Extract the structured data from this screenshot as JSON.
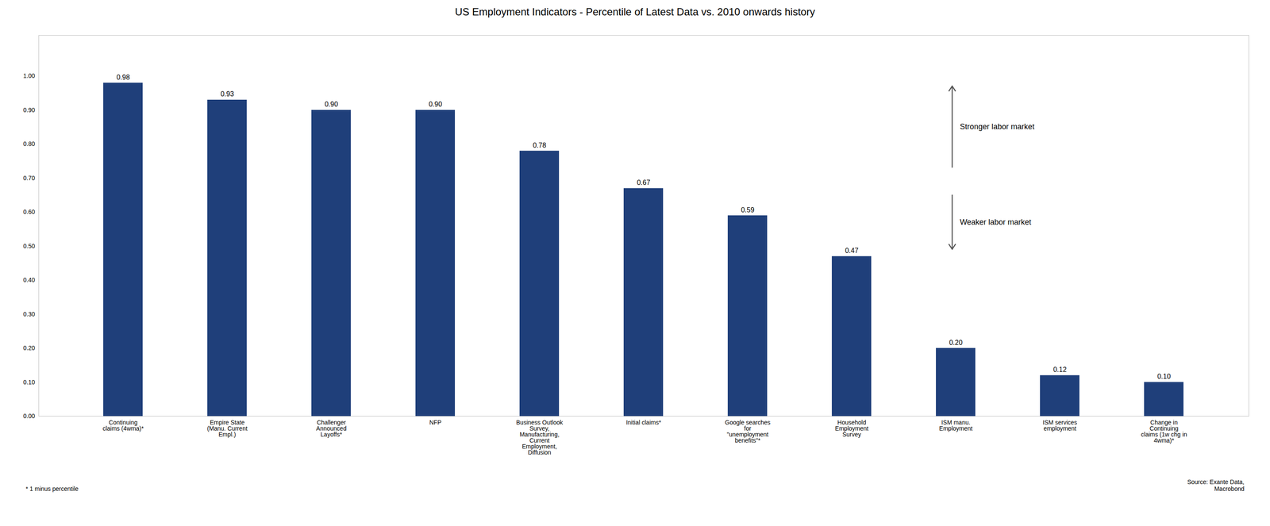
{
  "chart_data": {
    "type": "bar",
    "title": "US Employment Indicators - Percentile of Latest Data vs. 2010 onwards history",
    "categories": [
      "Continuing\nclaims (4wma)*",
      "Empire State\n(Manu. Current\nEmpl.)",
      "Challenger\nAnnounced\nLayoffs*",
      "NFP",
      "Business Outlook\nSurvey,\nManufacturing,\nCurrent\nEmployment,\nDiffusion",
      "Initial claims*",
      "Google searches\nfor\n\"unemployment\nbenefits\"*",
      "Household\nEmployment\nSurvey",
      "ISM manu.\nEmployment",
      "ISM services\nemployment",
      "Change in\nContinuing\nclaims (1w chg in\n4wma)*"
    ],
    "values": [
      0.98,
      0.93,
      0.9,
      0.9,
      0.78,
      0.67,
      0.59,
      0.47,
      0.2,
      0.12,
      0.1
    ],
    "value_labels": [
      "0.98",
      "0.93",
      "0.90",
      "0.90",
      "0.78",
      "0.67",
      "0.59",
      "0.47",
      "0.20",
      "0.12",
      "0.10"
    ],
    "data_labels": true,
    "color": "#1F3F7A",
    "ylim": [
      0,
      1.12
    ],
    "yticks": [
      {
        "value": 0,
        "label": "0.00"
      },
      {
        "value": 0.1,
        "label": "0.10"
      },
      {
        "value": 0.2,
        "label": "0.20"
      },
      {
        "value": 0.3,
        "label": "0.30"
      },
      {
        "value": 0.4,
        "label": "0.40"
      },
      {
        "value": 0.5,
        "label": "0.50"
      },
      {
        "value": 0.6,
        "label": "0.60"
      },
      {
        "value": 0.7,
        "label": "0.70"
      },
      {
        "value": 0.8,
        "label": "0.80"
      },
      {
        "value": 0.9,
        "label": "0.90"
      },
      {
        "value": 1,
        "label": "1.00"
      }
    ],
    "grid": false,
    "annotations": [
      "Stronger labor market",
      "Weaker labor market"
    ],
    "footnote": "* 1 minus percentile",
    "source": "Source: Exante Data,\nMacrobond"
  }
}
